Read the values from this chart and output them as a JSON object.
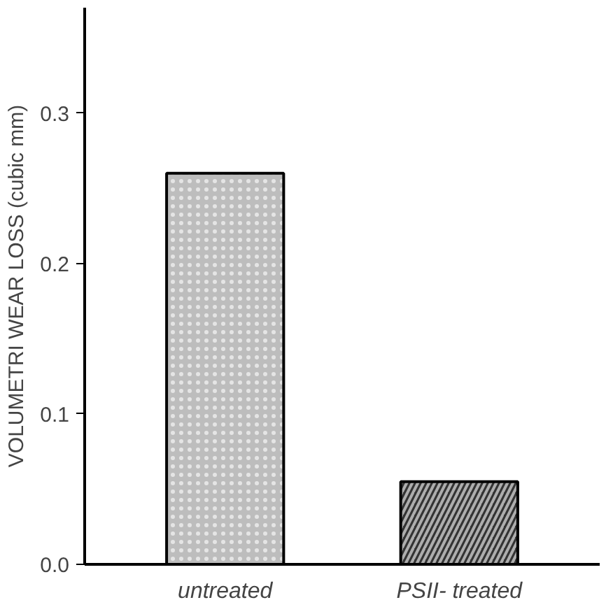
{
  "chart_data": {
    "type": "bar",
    "ylabel": "VOLUMETRI WEAR LOSS (cubic mm)",
    "categories": [
      "untreated",
      "PSII- treated"
    ],
    "values": [
      0.26,
      0.055
    ],
    "colors": [
      "#bdbdbd",
      "#333333"
    ],
    "ylim": [
      0,
      0.37
    ],
    "yticks": [
      {
        "value": 0,
        "label": "0.0"
      },
      {
        "value": 0.1,
        "label": "0.1"
      },
      {
        "value": 0.2,
        "label": "0.2"
      },
      {
        "value": 0.3,
        "label": "0.3"
      }
    ],
    "grid": false
  }
}
